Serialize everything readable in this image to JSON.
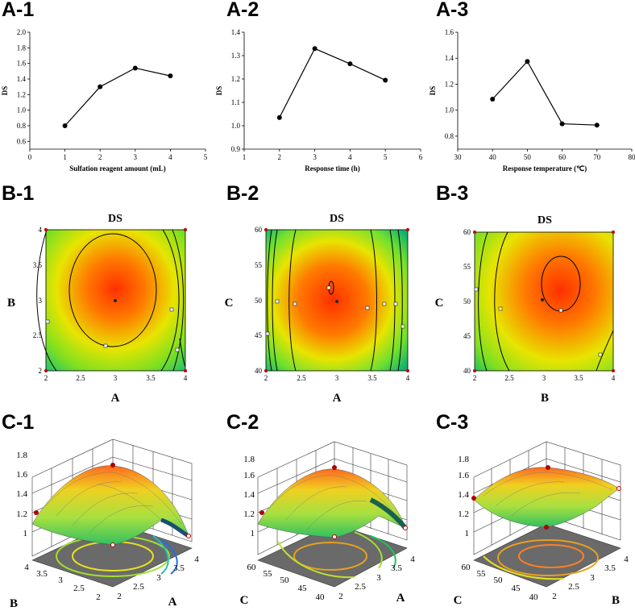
{
  "panel_labels": [
    "A-1",
    "A-2",
    "A-3",
    "B-1",
    "B-2",
    "B-3",
    "C-1",
    "C-2",
    "C-3"
  ],
  "colors": {
    "line": "#000000",
    "surface_high": "#ff4000",
    "surface_mid": "#e8e800",
    "surface_low": "#1f4fd0",
    "floor": "#707070"
  },
  "chart_data": [
    {
      "id": "A-1",
      "type": "line",
      "title": "",
      "xlabel": "Sulfation reagent amount (mL)",
      "ylabel": "DS",
      "x": [
        1,
        2,
        3,
        4
      ],
      "y": [
        0.8,
        1.3,
        1.54,
        1.44
      ],
      "xlim": [
        0,
        5
      ],
      "ylim": [
        0.5,
        2.0
      ],
      "xticks": [
        0,
        1,
        2,
        3,
        4,
        5
      ],
      "yticks": [
        0.6,
        0.8,
        1.0,
        1.2,
        1.4,
        1.6,
        1.8,
        2.0
      ],
      "xtick_labels": [
        "0",
        "1",
        "2",
        "3",
        "4",
        "5"
      ],
      "ytick_labels": [
        "0.6",
        "0.8",
        "1.0",
        "1.2",
        "1.4",
        "1.6",
        "1.8",
        "2.0"
      ]
    },
    {
      "id": "A-2",
      "type": "line",
      "title": "",
      "xlabel": "Response time (h)",
      "ylabel": "DS",
      "x": [
        2,
        3,
        4,
        5
      ],
      "y": [
        1.035,
        1.33,
        1.265,
        1.195
      ],
      "xlim": [
        1,
        6
      ],
      "ylim": [
        0.9,
        1.4
      ],
      "xticks": [
        1,
        2,
        3,
        4,
        5,
        6
      ],
      "yticks": [
        0.9,
        1.0,
        1.1,
        1.2,
        1.3,
        1.4
      ],
      "xtick_labels": [
        "1",
        "2",
        "3",
        "4",
        "5",
        "6"
      ],
      "ytick_labels": [
        "0.9",
        "1.0",
        "1.1",
        "1.2",
        "1.3",
        "1.4"
      ]
    },
    {
      "id": "A-3",
      "type": "line",
      "title": "",
      "xlabel": "Response temperature (℃)",
      "ylabel": "DS",
      "x": [
        40,
        50,
        60,
        70
      ],
      "y": [
        1.085,
        1.375,
        0.895,
        0.885
      ],
      "xlim": [
        30,
        80
      ],
      "ylim": [
        0.7,
        1.6
      ],
      "xticks": [
        30,
        40,
        50,
        60,
        70,
        80
      ],
      "yticks": [
        0.8,
        1.0,
        1.2,
        1.4,
        1.6
      ],
      "xtick_labels": [
        "30",
        "40",
        "50",
        "60",
        "70",
        "80"
      ],
      "ytick_labels": [
        "0.8",
        "1.0",
        "1.2",
        "1.4",
        "1.6"
      ]
    },
    {
      "id": "B-1",
      "type": "heatmap",
      "subtype": "contour",
      "title": "DS",
      "xlabel": "A",
      "ylabel": "B",
      "xlim": [
        2,
        4
      ],
      "ylim": [
        2,
        4
      ],
      "center_point": [
        3,
        3
      ],
      "xtick_labels": [
        "2",
        "2.5",
        "3",
        "3.5",
        "4"
      ],
      "ytick_labels": [
        "2",
        "2.5",
        "3",
        "3.5",
        "4"
      ]
    },
    {
      "id": "B-2",
      "type": "heatmap",
      "subtype": "contour",
      "title": "DS",
      "xlabel": "A",
      "ylabel": "C",
      "xlim": [
        2,
        4
      ],
      "ylim": [
        40,
        60
      ],
      "center_point": [
        3,
        50
      ],
      "xtick_labels": [
        "2",
        "2.5",
        "3",
        "3.5",
        "4"
      ],
      "ytick_labels": [
        "40",
        "45",
        "50",
        "55",
        "60"
      ]
    },
    {
      "id": "B-3",
      "type": "heatmap",
      "subtype": "contour",
      "title": "DS",
      "xlabel": "B",
      "ylabel": "C",
      "xlim": [
        2,
        4
      ],
      "ylim": [
        40,
        60
      ],
      "center_point": [
        3,
        50
      ],
      "xtick_labels": [
        "2",
        "2.5",
        "3",
        "3.5",
        "4"
      ],
      "ytick_labels": [
        "40",
        "45",
        "50",
        "55",
        "60"
      ]
    },
    {
      "id": "C-1",
      "type": "area",
      "subtype": "3d-surface",
      "xlabel": "A",
      "ylabel": "B",
      "zticks": [
        "1",
        "1.2",
        "1.4",
        "1.6",
        "1.8"
      ],
      "x_ticks": [
        "2",
        "2.5",
        "3",
        "3.5",
        "4"
      ],
      "y_ticks": [
        "2",
        "2.5",
        "3",
        "3.5",
        "4"
      ],
      "x_tick_labels_shown": [
        "2",
        "2.5",
        "3",
        "3.5",
        "4"
      ],
      "y_tick_labels_shown": [
        "2",
        "2.5",
        "3",
        "3.5",
        "4"
      ]
    },
    {
      "id": "C-2",
      "type": "area",
      "subtype": "3d-surface",
      "xlabel": "A",
      "ylabel": "C",
      "zticks": [
        "1",
        "1.2",
        "1.4",
        "1.6",
        "1.8"
      ],
      "x_tick_labels_shown": [
        "2",
        "2.5",
        "3",
        "3.5",
        "4"
      ],
      "y_tick_labels_shown": [
        "40",
        "45",
        "50",
        "55",
        "60"
      ]
    },
    {
      "id": "C-3",
      "type": "area",
      "subtype": "3d-surface",
      "xlabel": "B",
      "ylabel": "C",
      "zticks": [
        "1",
        "1.2",
        "1.4",
        "1.6",
        "1.8"
      ],
      "x_tick_labels_shown": [
        "2",
        "2.5",
        "3",
        "3.5",
        "4"
      ],
      "y_tick_labels_shown": [
        "40",
        "45",
        "50",
        "55",
        "60"
      ]
    }
  ]
}
